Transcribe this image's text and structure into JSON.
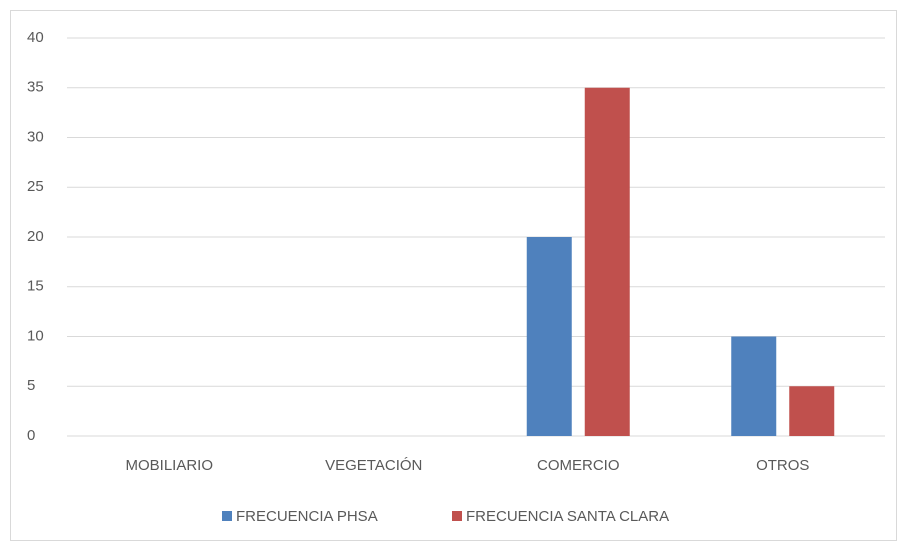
{
  "chart_data": {
    "type": "bar",
    "categories": [
      "MOBILIARIO",
      "VEGETACIÓN",
      "COMERCIO",
      "OTROS"
    ],
    "series": [
      {
        "name": "FRECUENCIA PHSA",
        "color": "#4f81bd",
        "values": [
          0,
          0,
          20,
          10
        ]
      },
      {
        "name": "FRECUENCIA SANTA CLARA",
        "color": "#c0504d",
        "values": [
          0,
          0,
          35,
          5
        ]
      }
    ],
    "ylim": [
      0,
      40
    ],
    "yticks": [
      0,
      5,
      10,
      15,
      20,
      25,
      30,
      35,
      40
    ],
    "grid": true,
    "legend": "bottom"
  }
}
